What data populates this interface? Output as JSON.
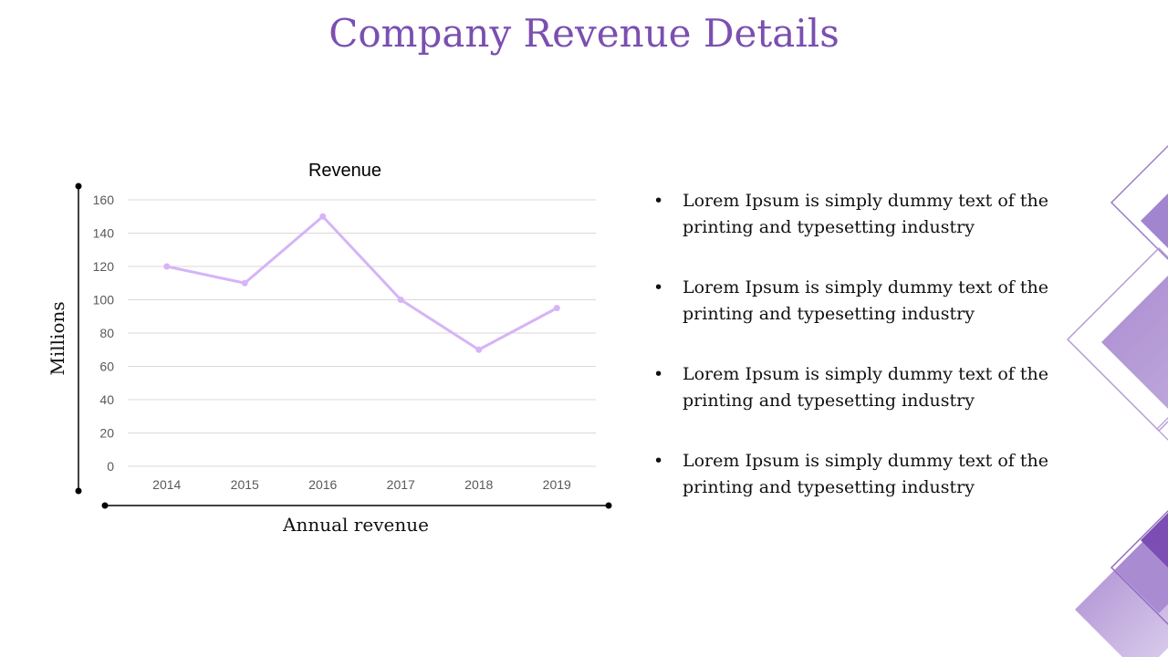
{
  "slide": {
    "title": "Company Revenue Details"
  },
  "chart_data": {
    "type": "line",
    "title": "Revenue",
    "xlabel": "Annual revenue",
    "ylabel": "Millions",
    "categories": [
      "2014",
      "2015",
      "2016",
      "2017",
      "2018",
      "2019"
    ],
    "series": [
      {
        "values": [
          120,
          110,
          150,
          100,
          70,
          95
        ]
      }
    ],
    "ylim": [
      0,
      160
    ],
    "yticks": [
      "0",
      "20",
      "40",
      "60",
      "80",
      "100",
      "120",
      "140",
      "160"
    ],
    "grid": true,
    "legend": "none",
    "line_color": "#d6b4f7",
    "grid_color": "#d9d9d9"
  },
  "bullets": [
    {
      "text": "Lorem Ipsum is simply dummy text of the printing and typesetting industry"
    },
    {
      "text": "Lorem Ipsum is simply dummy text of the printing and typesetting industry"
    },
    {
      "text": "Lorem Ipsum is simply dummy text of the printing and typesetting industry"
    },
    {
      "text": "Lorem Ipsum is simply dummy text of the printing and typesetting industry"
    }
  ],
  "bullet_glyph": "•",
  "colors": {
    "accent": "#7b4fb0",
    "decor_light": "#b59ad6",
    "decor_dark": "#7c4db3"
  }
}
